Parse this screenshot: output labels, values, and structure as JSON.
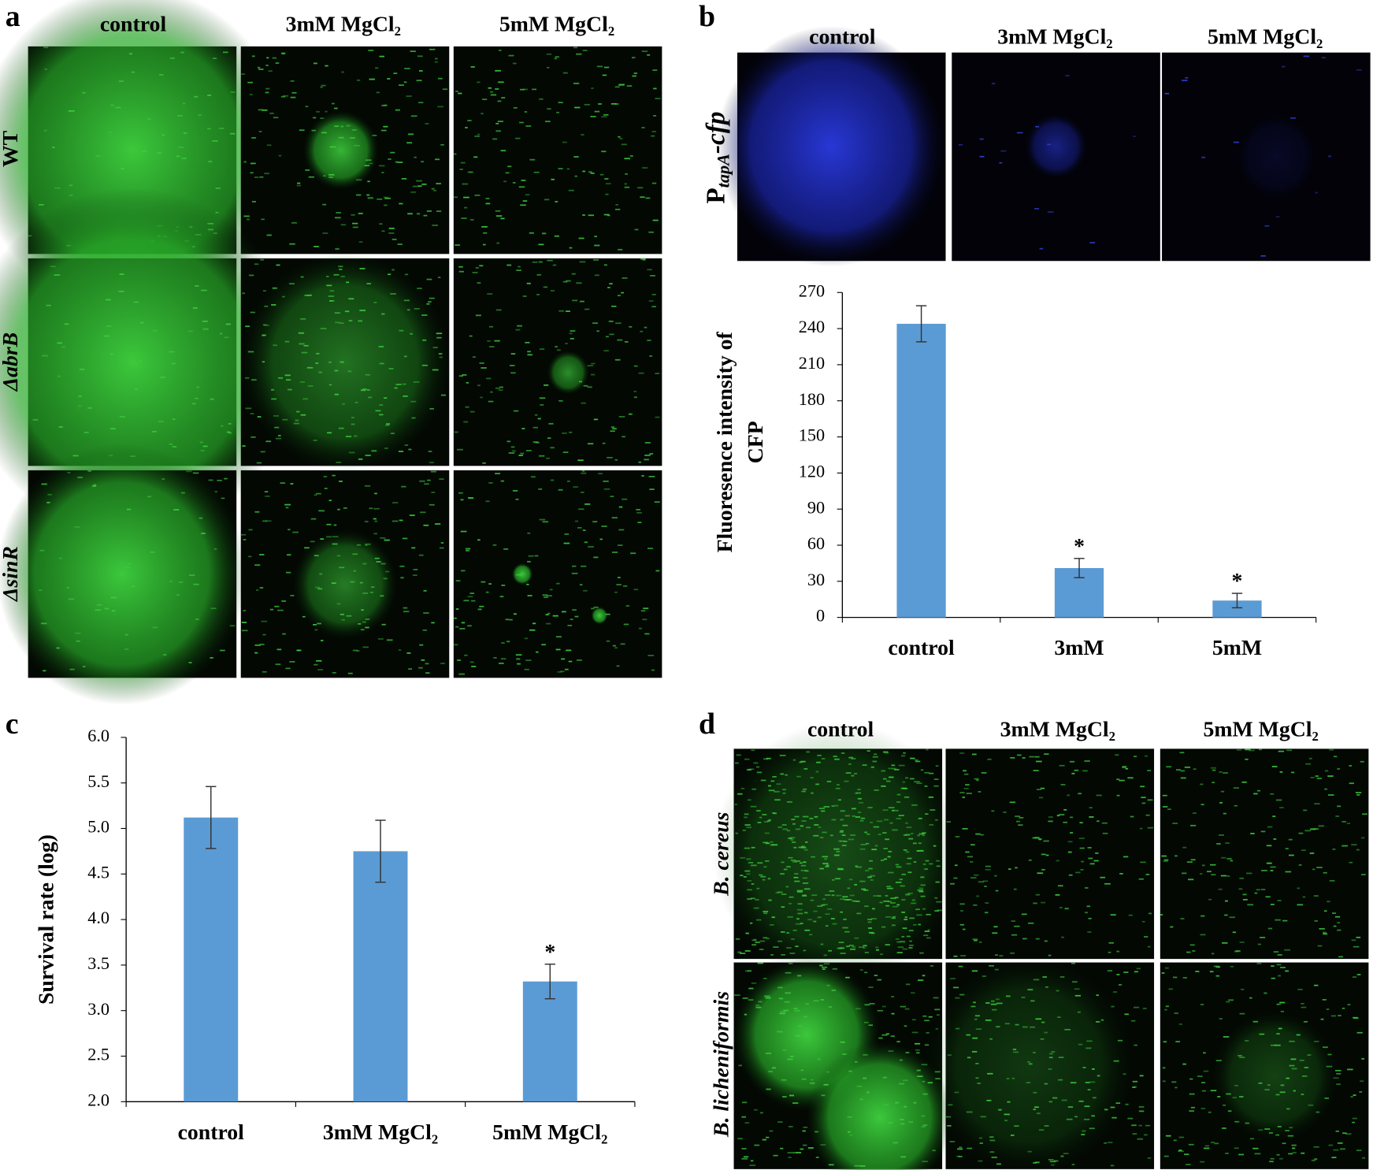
{
  "panels": {
    "a": {
      "label": "a",
      "columns": [
        "control",
        "3mM MgCl₂",
        "5mM MgCl₂"
      ],
      "rows": [
        "WT",
        "ΔabrB",
        "ΔsinR"
      ]
    },
    "b": {
      "label": "b",
      "columns": [
        "control",
        "3mM MgCl₂",
        "5mM MgCl₂"
      ],
      "row_label": [
        "P",
        "tapA",
        "-cfp"
      ]
    },
    "c": {
      "label": "c"
    },
    "d": {
      "label": "d",
      "columns": [
        "control",
        "3mM MgCl₂",
        "5mM MgCl₂"
      ],
      "rows": [
        "B. cereus",
        "B. licheniformis"
      ]
    }
  },
  "chart_data": [
    {
      "type": "bar",
      "ylabel": [
        "Fluoresence intensity of",
        "CFP"
      ],
      "categories": [
        "control",
        "3mM",
        "5mM"
      ],
      "values": [
        244,
        41,
        14
      ],
      "errors": [
        15,
        8,
        6
      ],
      "annotations": [
        null,
        "*",
        "*"
      ],
      "color": "#5b9bd5",
      "ylim": [
        0,
        270
      ],
      "yticks": [
        0,
        30,
        60,
        90,
        120,
        150,
        180,
        210,
        240,
        270
      ]
    },
    {
      "type": "bar",
      "ylabel": "Survival rate (log)",
      "categories": [
        "control",
        "3mM MgCl₂",
        "5mM MgCl₂"
      ],
      "values": [
        5.12,
        4.75,
        3.32
      ],
      "errors": [
        0.34,
        0.34,
        0.19
      ],
      "annotations": [
        null,
        null,
        "*"
      ],
      "color": "#5b9bd5",
      "ylim": [
        2,
        6
      ],
      "yticks": [
        {
          "value": 2,
          "label": "2.0"
        },
        {
          "value": 2.5,
          "label": "2.5"
        },
        {
          "value": 3,
          "label": "3.0"
        },
        {
          "value": 3.5,
          "label": "3.5"
        },
        {
          "value": 4,
          "label": "4.0"
        },
        {
          "value": 4.5,
          "label": "4.5"
        },
        {
          "value": 5,
          "label": "5.0"
        },
        {
          "value": 5.5,
          "label": "5.5"
        },
        {
          "value": 6,
          "label": "6.0"
        }
      ]
    }
  ]
}
